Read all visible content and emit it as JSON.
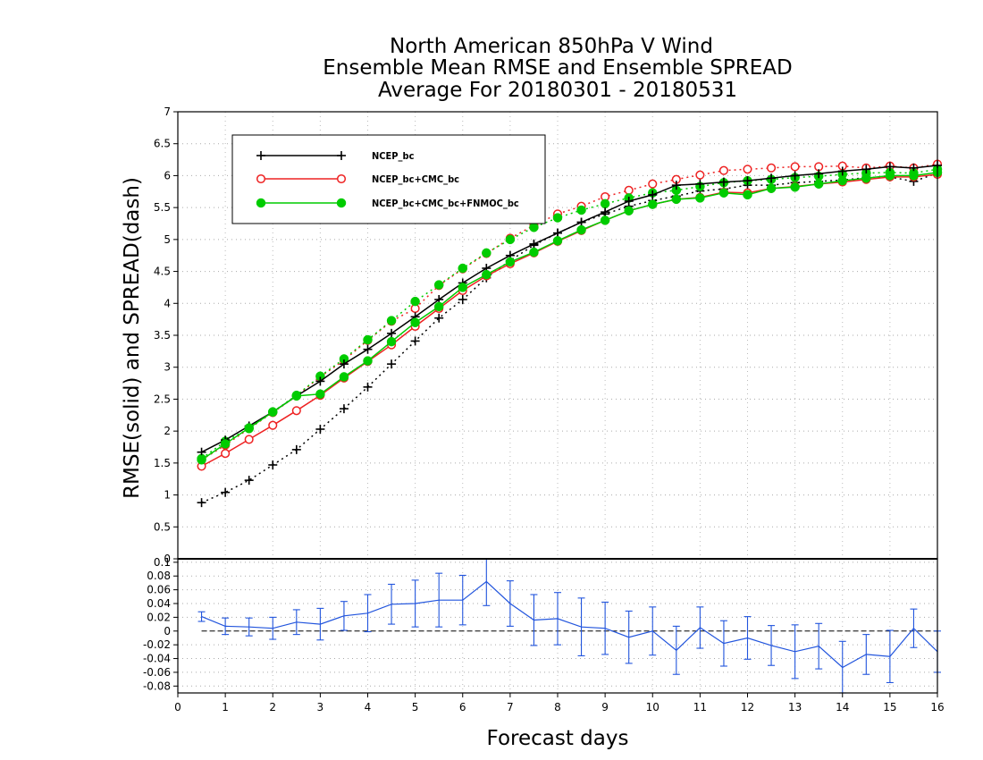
{
  "title_lines": [
    "North American 850hPa V Wind",
    "Ensemble Mean RMSE and Ensemble SPREAD",
    "Average For 20180301 - 20180531"
  ],
  "ylabel": "RMSE(solid)  and  SPREAD(dash)",
  "xlabel": "Forecast days",
  "colors": {
    "ncep": "#000000",
    "cmc": "#ee2222",
    "fnmoc": "#00cc00",
    "diff": "#2255dd"
  },
  "chart_data": [
    {
      "type": "line",
      "xlim": [
        0,
        16
      ],
      "ylim": [
        0,
        7
      ],
      "x_ticks": [
        "0",
        "1",
        "2",
        "3",
        "4",
        "5",
        "6",
        "7",
        "8",
        "9",
        "10",
        "11",
        "12",
        "13",
        "14",
        "15",
        "16"
      ],
      "y_ticks": [
        "0",
        "0.5",
        "1",
        "1.5",
        "2",
        "2.5",
        "3",
        "3.5",
        "4",
        "4.5",
        "5",
        "5.5",
        "6",
        "6.5",
        "7"
      ],
      "grid": true,
      "legend_position": "top-left",
      "x": [
        0.5,
        1,
        1.5,
        2,
        2.5,
        3,
        3.5,
        4,
        4.5,
        5,
        5.5,
        6,
        6.5,
        7,
        7.5,
        8,
        8.5,
        9,
        9.5,
        10,
        10.5,
        11,
        11.5,
        12,
        12.5,
        13,
        13.5,
        14,
        14.5,
        15,
        15.5,
        16
      ],
      "series": [
        {
          "name": "NCEP_bc",
          "key": "ncep",
          "marker": "plus",
          "style": "solid",
          "values": [
            1.67,
            1.86,
            2.08,
            2.3,
            2.55,
            2.78,
            3.05,
            3.28,
            3.53,
            3.79,
            4.06,
            4.32,
            4.55,
            4.75,
            4.93,
            5.1,
            5.27,
            5.43,
            5.6,
            5.7,
            5.85,
            5.87,
            5.9,
            5.92,
            5.96,
            6.0,
            6.03,
            6.07,
            6.1,
            6.14,
            6.12,
            6.16
          ]
        },
        {
          "name": "NCEP_bc+CMC_bc",
          "key": "cmc",
          "marker": "circle",
          "style": "solid",
          "values": [
            1.45,
            1.65,
            1.87,
            2.09,
            2.32,
            2.56,
            2.83,
            3.09,
            3.35,
            3.64,
            3.92,
            4.2,
            4.43,
            4.62,
            4.79,
            4.97,
            5.14,
            5.3,
            5.45,
            5.55,
            5.63,
            5.66,
            5.74,
            5.73,
            5.8,
            5.83,
            5.87,
            5.9,
            5.94,
            5.98,
            5.98,
            6.02
          ]
        },
        {
          "name": "NCEP_bc+CMC_bc+FNMOC_bc",
          "key": "fnmoc",
          "marker": "dot",
          "style": "solid",
          "values": [
            1.55,
            1.8,
            2.05,
            2.3,
            2.55,
            2.58,
            2.85,
            3.1,
            3.4,
            3.7,
            3.95,
            4.25,
            4.45,
            4.65,
            4.8,
            4.98,
            5.15,
            5.3,
            5.45,
            5.55,
            5.63,
            5.65,
            5.73,
            5.7,
            5.8,
            5.82,
            5.87,
            5.92,
            5.96,
            6.0,
            6.0,
            6.05
          ]
        },
        {
          "name": "",
          "key": "ncep",
          "marker": "plus",
          "style": "dash",
          "values": [
            0.88,
            1.04,
            1.23,
            1.47,
            1.71,
            2.03,
            2.35,
            2.69,
            3.05,
            3.41,
            3.77,
            4.06,
            4.4,
            4.67,
            4.91,
            5.1,
            5.27,
            5.4,
            5.52,
            5.61,
            5.68,
            5.76,
            5.79,
            5.85,
            5.85,
            5.89,
            5.91,
            5.93,
            5.97,
            5.98,
            5.91,
            6.04
          ]
        },
        {
          "name": "",
          "key": "cmc",
          "marker": "circle",
          "style": "dash",
          "values": [
            1.55,
            1.78,
            2.04,
            2.29,
            2.55,
            2.85,
            3.11,
            3.42,
            3.72,
            3.92,
            4.28,
            4.54,
            4.78,
            5.02,
            5.22,
            5.4,
            5.52,
            5.67,
            5.77,
            5.87,
            5.94,
            6.01,
            6.08,
            6.1,
            6.12,
            6.14,
            6.14,
            6.15,
            6.12,
            6.15,
            6.12,
            6.18
          ]
        },
        {
          "name": "",
          "key": "fnmoc",
          "marker": "dot",
          "style": "dash",
          "values": [
            1.57,
            1.84,
            2.04,
            2.3,
            2.56,
            2.86,
            3.13,
            3.43,
            3.73,
            4.03,
            4.29,
            4.55,
            4.79,
            5.0,
            5.19,
            5.34,
            5.46,
            5.56,
            5.65,
            5.73,
            5.77,
            5.83,
            5.89,
            5.92,
            5.94,
            5.97,
            5.99,
            6.02,
            6.04,
            6.05,
            6.04,
            6.1
          ]
        }
      ]
    },
    {
      "type": "line",
      "xlim": [
        0,
        16
      ],
      "ylim": [
        -0.09,
        0.105
      ],
      "y_ticks": [
        "0.1",
        "0.08",
        "0.06",
        "0.04",
        "0.02",
        "0",
        "-0.02",
        "-0.04",
        "-0.06",
        "-0.08"
      ],
      "grid": true,
      "x": [
        0.5,
        1,
        1.5,
        2,
        2.5,
        3,
        3.5,
        4,
        4.5,
        5,
        5.5,
        6,
        6.5,
        7,
        7.5,
        8,
        8.5,
        9,
        9.5,
        10,
        10.5,
        11,
        11.5,
        12,
        12.5,
        13,
        13.5,
        14,
        14.5,
        15,
        15.5,
        16
      ],
      "values": [
        0.021,
        0.007,
        0.006,
        0.004,
        0.013,
        0.01,
        0.022,
        0.026,
        0.039,
        0.04,
        0.045,
        0.045,
        0.072,
        0.04,
        0.016,
        0.018,
        0.006,
        0.004,
        -0.009,
        0.0,
        -0.028,
        0.005,
        -0.018,
        -0.01,
        -0.021,
        -0.03,
        -0.022,
        -0.053,
        -0.034,
        -0.037,
        0.004,
        -0.03
      ],
      "error": [
        0.007,
        0.012,
        0.013,
        0.016,
        0.018,
        0.023,
        0.021,
        0.027,
        0.029,
        0.034,
        0.039,
        0.036,
        0.035,
        0.033,
        0.037,
        0.038,
        0.042,
        0.038,
        0.038,
        0.035,
        0.035,
        0.03,
        0.033,
        0.031,
        0.029,
        0.039,
        0.033,
        0.038,
        0.029,
        0.038,
        0.028,
        0.03
      ]
    }
  ]
}
